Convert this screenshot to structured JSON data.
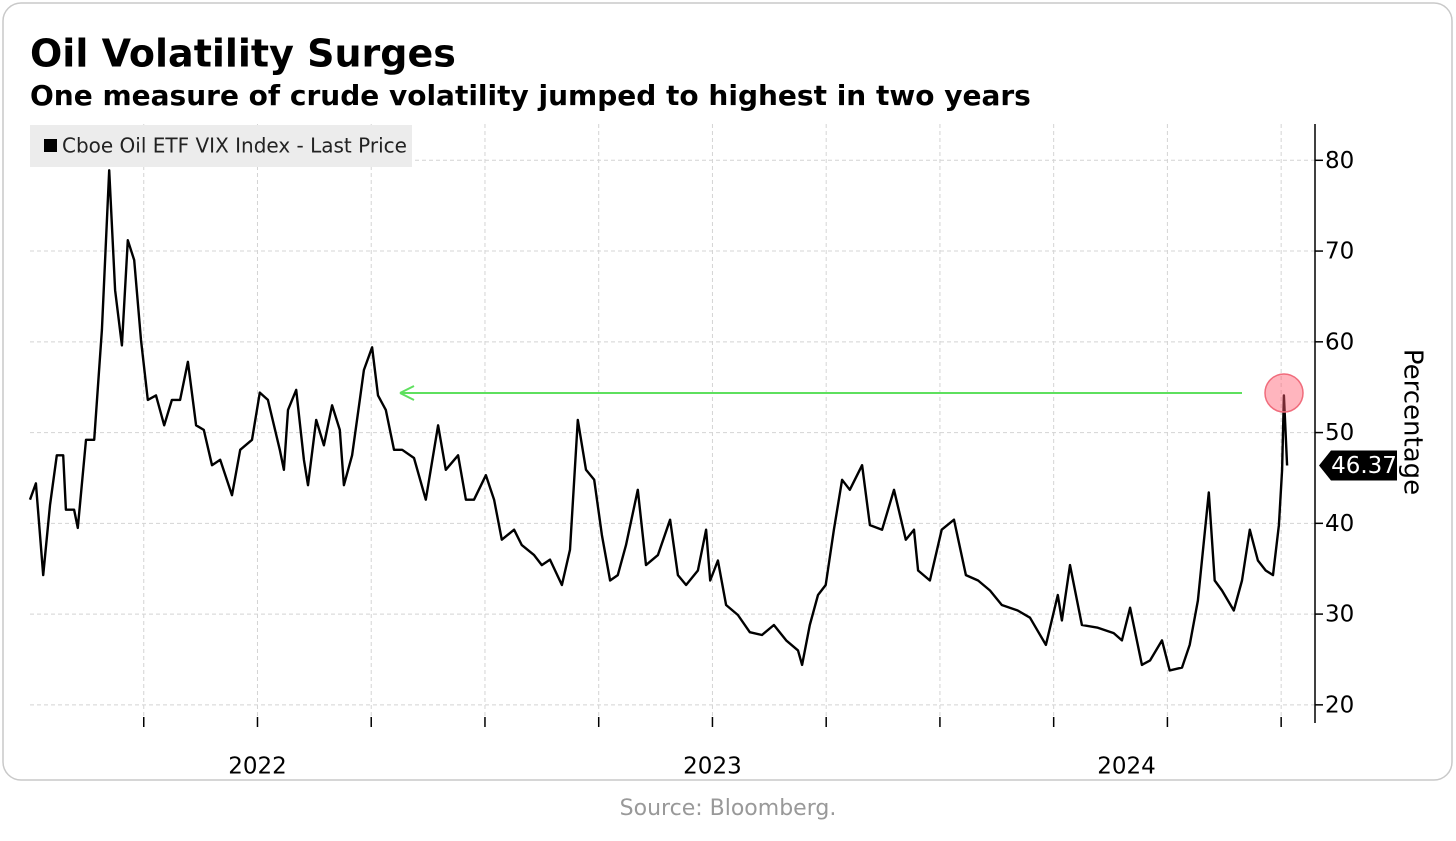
{
  "chart_data": {
    "type": "line",
    "title": "Oil Volatility Surges",
    "subtitle": "One measure of crude volatility jumped to highest in two years",
    "y_axis_label": "Percentage",
    "source": "Source: Bloomberg.",
    "x": [
      2022.0,
      2022.013,
      2022.029,
      2022.044,
      2022.059,
      2022.073,
      2022.079,
      2022.097,
      2022.105,
      2022.123,
      2022.141,
      2022.158,
      2022.174,
      2022.187,
      2022.202,
      2022.215,
      2022.229,
      2022.244,
      2022.259,
      2022.277,
      2022.295,
      2022.312,
      2022.33,
      2022.347,
      2022.365,
      2022.382,
      2022.4,
      2022.418,
      2022.444,
      2022.462,
      2022.488,
      2022.505,
      2022.523,
      2022.549,
      2022.558,
      2022.567,
      2022.585,
      2022.602,
      2022.611,
      2022.629,
      2022.646,
      2022.664,
      2022.681,
      2022.69,
      2022.708,
      2022.725,
      2022.734,
      2022.752,
      2022.765,
      2022.782,
      2022.8,
      2022.818,
      2022.844,
      2022.87,
      2022.897,
      2022.914,
      2022.941,
      2022.958,
      2022.976,
      2023.002,
      2023.02,
      2023.037,
      2023.064,
      2023.081,
      2023.108,
      2023.125,
      2023.143,
      2023.169,
      2023.187,
      2023.204,
      2023.222,
      2023.24,
      2023.257,
      2023.275,
      2023.292,
      2023.31,
      2023.336,
      2023.354,
      2023.38,
      2023.407,
      2023.424,
      2023.442,
      2023.468,
      2023.486,
      2023.495,
      2023.512,
      2023.53,
      2023.556,
      2023.582,
      2023.609,
      2023.635,
      2023.662,
      2023.688,
      2023.697,
      2023.714,
      2023.732,
      2023.749,
      2023.767,
      2023.785,
      2023.802,
      2023.829,
      2023.846,
      2023.873,
      2023.899,
      2023.925,
      2023.943,
      2023.952,
      2023.978,
      2024.004,
      2024.031,
      2024.057,
      2024.084,
      2024.11,
      2024.136,
      2024.171,
      2024.198,
      2024.233,
      2024.259,
      2024.268,
      2024.286,
      2024.312,
      2024.347,
      2024.382,
      2024.4,
      2024.418,
      2024.444,
      2024.462,
      2024.488,
      2024.505,
      2024.532,
      2024.549,
      2024.567,
      2024.591,
      2024.604,
      2024.62,
      2024.646,
      2024.664,
      2024.681,
      2024.699,
      2024.716,
      2024.732,
      2024.745,
      2024.752,
      2024.756,
      2024.763
    ],
    "series": [
      {
        "name": "Cboe Oil ETF VIX Index - Last Price",
        "color": "#000000",
        "values": [
          42.6,
          44.4,
          34.3,
          42.0,
          47.5,
          47.5,
          41.5,
          41.5,
          39.5,
          49.2,
          49.2,
          61.3,
          78.9,
          65.7,
          59.6,
          71.2,
          69.0,
          60.2,
          53.6,
          54.1,
          50.8,
          53.6,
          53.6,
          57.8,
          50.8,
          50.3,
          46.4,
          47.0,
          43.1,
          48.1,
          49.2,
          54.4,
          53.6,
          48.1,
          45.9,
          52.5,
          54.7,
          47.0,
          44.2,
          51.4,
          48.6,
          53.0,
          50.3,
          44.2,
          47.5,
          53.6,
          56.9,
          59.4,
          54.1,
          52.5,
          48.1,
          48.1,
          47.2,
          42.6,
          50.8,
          45.9,
          47.5,
          42.6,
          42.6,
          45.3,
          42.6,
          38.2,
          39.3,
          37.6,
          36.5,
          35.4,
          36.0,
          33.2,
          37.1,
          51.4,
          45.9,
          44.8,
          38.7,
          33.7,
          34.3,
          37.6,
          43.7,
          35.4,
          36.5,
          40.4,
          34.3,
          33.2,
          34.8,
          39.3,
          33.7,
          35.9,
          31.0,
          29.9,
          28.0,
          27.7,
          28.8,
          27.1,
          26.0,
          24.4,
          28.8,
          32.1,
          33.2,
          39.3,
          44.8,
          43.7,
          46.4,
          39.8,
          39.3,
          43.7,
          38.2,
          39.3,
          34.8,
          33.7,
          39.3,
          40.4,
          34.3,
          33.7,
          32.6,
          31.0,
          30.4,
          29.6,
          26.6,
          32.1,
          29.3,
          35.4,
          28.8,
          28.5,
          27.9,
          27.1,
          30.7,
          24.4,
          24.9,
          27.1,
          23.8,
          24.1,
          26.6,
          31.5,
          43.4,
          33.7,
          32.6,
          30.4,
          33.7,
          39.3,
          35.9,
          34.8,
          34.3,
          39.8,
          45.9,
          54.1,
          46.37
        ]
      }
    ],
    "xlim": [
      2022,
      2024.82
    ],
    "xticks": [
      {
        "value": 2022.5,
        "label": "2022"
      },
      {
        "value": 2023.5,
        "label": "2023"
      },
      {
        "value": 2024.41,
        "label": "2024"
      }
    ],
    "xgrid": [
      2022.25,
      2022.5,
      2022.75,
      2023,
      2023.25,
      2023.5,
      2023.75,
      2024,
      2024.25,
      2024.5,
      2024.75
    ],
    "ylim": [
      18,
      84
    ],
    "yticks": [
      20,
      30,
      40,
      50,
      60,
      70,
      80
    ],
    "grid": true,
    "legend": "top-left"
  }
}
